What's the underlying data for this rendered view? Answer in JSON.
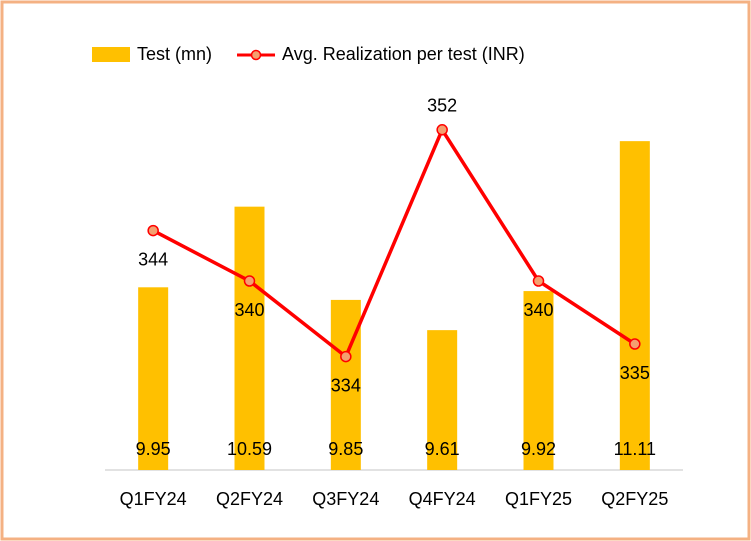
{
  "chart_data": {
    "type": "bar-line",
    "categories": [
      "Q1FY24",
      "Q2FY24",
      "Q3FY24",
      "Q4FY24",
      "Q1FY25",
      "Q2FY25"
    ],
    "series": [
      {
        "name": "Test (mn)",
        "type": "bar",
        "color": "#ffc000",
        "values": [
          9.95,
          10.59,
          9.85,
          9.61,
          9.92,
          11.11
        ]
      },
      {
        "name": "Avg. Realization per test (INR)",
        "type": "line",
        "axis": "y2",
        "color": "#ff0000",
        "marker_color": "#f4a070",
        "values": [
          344,
          340,
          334,
          352,
          340,
          335
        ]
      }
    ],
    "ylim": [
      8.5,
      11.5
    ],
    "y2lim": [
      325,
      355
    ],
    "legend": "top"
  }
}
